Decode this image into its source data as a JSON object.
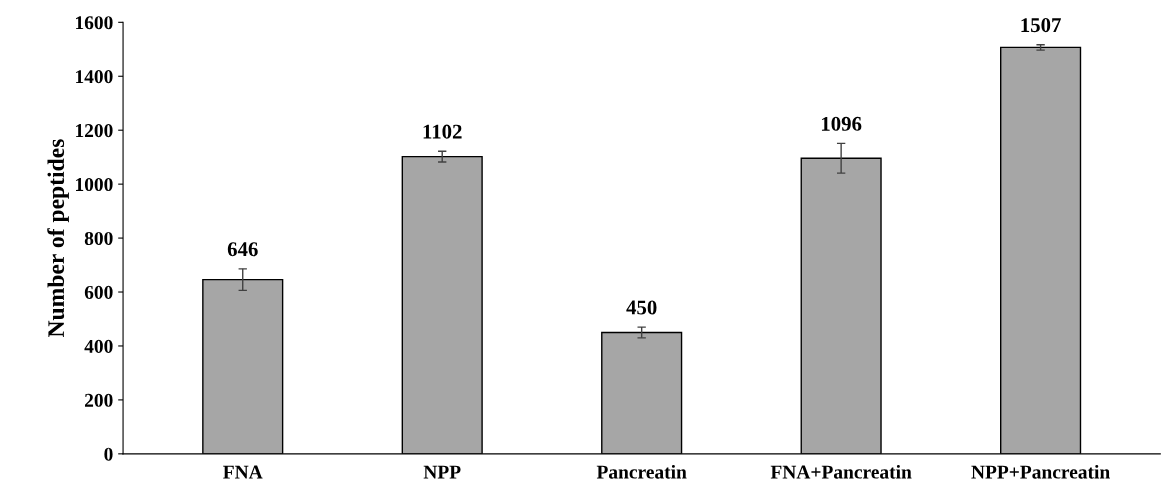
{
  "chart_data": {
    "type": "bar",
    "ylabel": "Number of peptides",
    "categories": [
      "FNA",
      "NPP",
      "Pancreatin",
      "FNA+Pancreatin",
      "NPP+Pancreatin"
    ],
    "values": [
      646,
      1102,
      450,
      1096,
      1507
    ],
    "errors": [
      40,
      20,
      20,
      55,
      10
    ],
    "color": "#a6a6a6",
    "ylim": [
      0,
      1600
    ],
    "yticks": [
      0,
      200,
      400,
      600,
      800,
      1000,
      1200,
      1400,
      1600
    ],
    "data_labels": true,
    "grid": false,
    "legend": false
  }
}
